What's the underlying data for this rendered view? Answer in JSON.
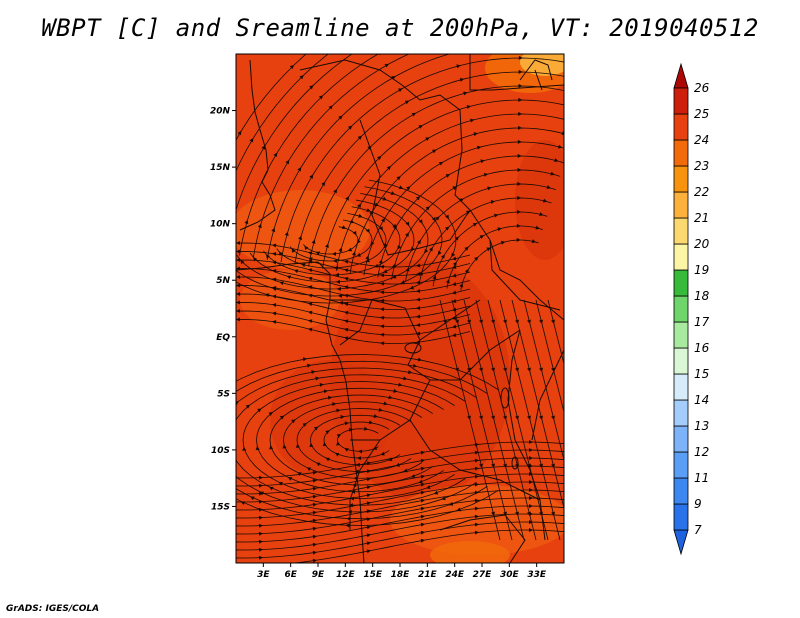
{
  "title": "WBPT [C] and Sreamline at 200hPa, VT: 2019040512",
  "credit": "GrADS: IGES/COLA",
  "map": {
    "lon_range": [
      0,
      36
    ],
    "lat_range": [
      -20,
      25
    ],
    "lon_ticks": [
      "3E",
      "6E",
      "9E",
      "12E",
      "15E",
      "18E",
      "21E",
      "24E",
      "27E",
      "30E",
      "33E"
    ],
    "lon_values": [
      3,
      6,
      9,
      12,
      15,
      18,
      21,
      24,
      27,
      30,
      33
    ],
    "lat_ticks": [
      "20N",
      "15N",
      "10N",
      "5N",
      "EQ",
      "5S",
      "10S",
      "15S"
    ],
    "lat_values": [
      20,
      15,
      10,
      5,
      0,
      -5,
      -10,
      -15
    ],
    "field_dominant_color": "#e6410f"
  },
  "colorbar": {
    "labels": [
      "7",
      "9",
      "11",
      "12",
      "13",
      "14",
      "15",
      "16",
      "17",
      "18",
      "19",
      "20",
      "21",
      "22",
      "23",
      "24",
      "25",
      "26"
    ],
    "colors": [
      "#1f62e0",
      "#2a72ea",
      "#3c88f0",
      "#5b9ef5",
      "#7db4f9",
      "#a5cdfb",
      "#d6ecfb",
      "#d9f7d4",
      "#a8eba0",
      "#6ed66a",
      "#38bb3a",
      "#fdf5a6",
      "#fcd970",
      "#fbb13c",
      "#f8930e",
      "#f36a0a",
      "#e6410f",
      "#cd1f0c",
      "#ad0806"
    ]
  }
}
